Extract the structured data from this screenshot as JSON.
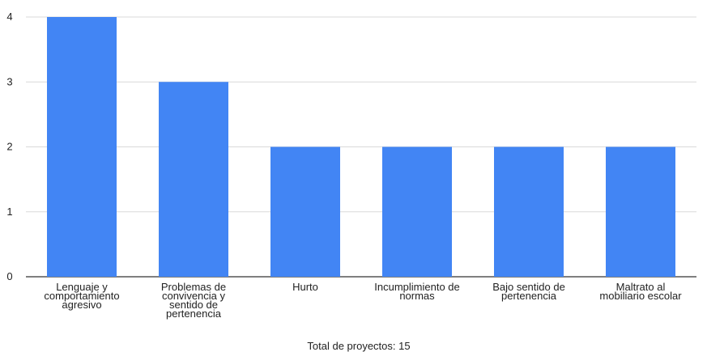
{
  "chart_data": {
    "type": "bar",
    "categories": [
      [
        "Lenguaje y",
        "comportamiento",
        "agresivo"
      ],
      [
        "Problemas de",
        "convivencia y",
        "sentido de",
        "pertenencia"
      ],
      [
        "Hurto"
      ],
      [
        "Incumplimiento de",
        "normas"
      ],
      [
        "Bajo sentido de",
        "pertenencia"
      ],
      [
        "Maltrato al",
        "mobiliario escolar"
      ]
    ],
    "values": [
      4,
      3,
      2,
      2,
      2,
      2
    ],
    "ylim": [
      0,
      4
    ],
    "yticks": [
      "0",
      "1",
      "2",
      "3",
      "4"
    ],
    "grid": true,
    "bar_color": "#4285F4",
    "caption": "Total de proyectos: 15"
  }
}
